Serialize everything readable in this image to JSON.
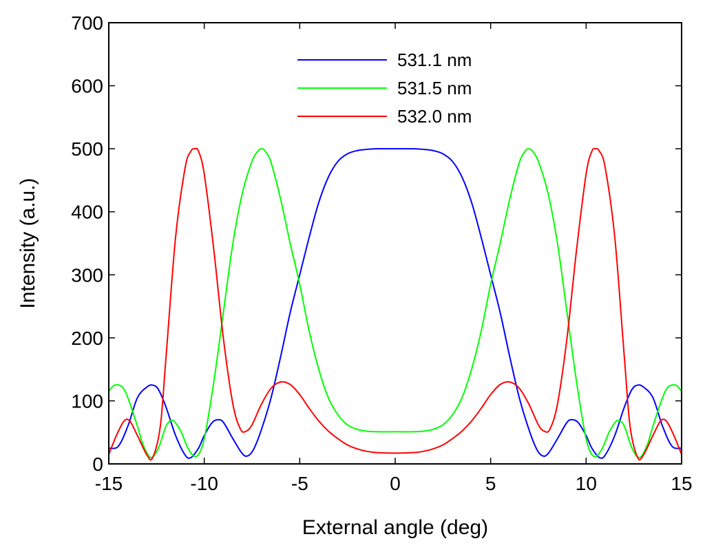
{
  "chart_data": {
    "type": "line",
    "title": "",
    "xlabel": "External angle (deg)",
    "ylabel": "Intensity (a.u.)",
    "xlim": [
      -15,
      15
    ],
    "ylim": [
      0,
      700
    ],
    "xticks": [
      -15,
      -10,
      -5,
      0,
      5,
      10,
      15
    ],
    "xtick_labels": [
      "-15",
      "-10",
      "-5",
      "0",
      "5",
      "10",
      "15"
    ],
    "yticks": [
      0,
      100,
      200,
      300,
      400,
      500,
      600,
      700
    ],
    "ytick_labels": [
      "0",
      "100",
      "200",
      "300",
      "400",
      "500",
      "600",
      "700"
    ],
    "grid": false,
    "legend_position": "top-center",
    "series": [
      {
        "name": "531.1 nm",
        "color": "#0000ff",
        "x": [
          -15,
          -14.5,
          -14,
          -13.5,
          -13,
          -12.7,
          -12.4,
          -12,
          -11.5,
          -11,
          -10.7,
          -10.3,
          -10,
          -9.6,
          -9.3,
          -9,
          -8.5,
          -8,
          -7.7,
          -7.4,
          -7,
          -6.5,
          -6,
          -5.5,
          -5,
          -4.5,
          -4,
          -3.5,
          -3,
          -2.5,
          -2,
          -1.5,
          -1,
          -0.5,
          0,
          0.5,
          1,
          1.5,
          2,
          2.5,
          3,
          3.5,
          4,
          4.5,
          5,
          5.5,
          6,
          6.5,
          7,
          7.4,
          7.7,
          8,
          8.5,
          9,
          9.3,
          9.6,
          10,
          10.3,
          10.7,
          11,
          11.5,
          12,
          12.4,
          12.7,
          13,
          13.5,
          14,
          14.5,
          15
        ],
        "y": [
          25,
          28,
          60,
          105,
          122,
          125,
          118,
          90,
          45,
          14,
          10,
          25,
          45,
          65,
          70,
          66,
          40,
          16,
          13,
          24,
          55,
          105,
          170,
          240,
          300,
          360,
          415,
          455,
          480,
          492,
          497,
          499,
          500,
          500,
          500,
          500,
          500,
          499,
          497,
          492,
          480,
          455,
          415,
          360,
          300,
          240,
          170,
          105,
          55,
          24,
          13,
          16,
          40,
          66,
          70,
          65,
          45,
          25,
          10,
          14,
          45,
          90,
          118,
          125,
          122,
          105,
          60,
          28,
          25
        ]
      },
      {
        "name": "531.5 nm",
        "color": "#00ff00",
        "x": [
          -15,
          -14.7,
          -14.3,
          -14,
          -13.5,
          -13.2,
          -12.8,
          -12.4,
          -12,
          -11.7,
          -11.5,
          -11.2,
          -10.8,
          -10.4,
          -10,
          -9.5,
          -9,
          -8.5,
          -8,
          -7.5,
          -7.2,
          -7,
          -6.8,
          -6.5,
          -6,
          -5.5,
          -5,
          -4.5,
          -4,
          -3.5,
          -3,
          -2.5,
          -2,
          -1.5,
          -1,
          0,
          1,
          1.5,
          2,
          2.5,
          3,
          3.5,
          4,
          4.5,
          5,
          5.5,
          6,
          6.5,
          6.8,
          7,
          7.2,
          7.5,
          8,
          8.5,
          9,
          9.5,
          10,
          10.4,
          10.8,
          11.2,
          11.5,
          11.7,
          12,
          12.4,
          12.8,
          13.2,
          13.5,
          14,
          14.3,
          14.7,
          15
        ],
        "y": [
          115,
          125,
          122,
          105,
          60,
          30,
          10,
          25,
          60,
          69,
          65,
          50,
          22,
          12,
          40,
          130,
          240,
          350,
          430,
          480,
          496,
          500,
          496,
          478,
          420,
          350,
          285,
          210,
          150,
          105,
          78,
          62,
          55,
          52,
          51,
          51,
          51,
          52,
          55,
          62,
          78,
          105,
          150,
          210,
          285,
          350,
          420,
          478,
          496,
          500,
          496,
          480,
          430,
          350,
          240,
          130,
          40,
          12,
          22,
          50,
          65,
          69,
          60,
          25,
          10,
          30,
          60,
          105,
          122,
          125,
          115
        ]
      },
      {
        "name": "532.0 nm",
        "color": "#ff0000",
        "x": [
          -15,
          -14.6,
          -14.2,
          -13.9,
          -13.5,
          -13,
          -12.7,
          -12.3,
          -12,
          -11.5,
          -11,
          -10.7,
          -10.5,
          -10.3,
          -10,
          -9.5,
          -9,
          -8.5,
          -8.1,
          -7.8,
          -7.5,
          -7,
          -6.5,
          -6,
          -5.5,
          -5,
          -4.5,
          -4,
          -3.5,
          -3,
          -2.5,
          -2,
          -1.5,
          -1,
          0,
          1,
          1.5,
          2,
          2.5,
          3,
          3.5,
          4,
          4.5,
          5,
          5.5,
          6,
          6.5,
          7,
          7.5,
          7.8,
          8.1,
          8.5,
          9,
          9.5,
          10,
          10.3,
          10.5,
          10.7,
          11,
          11.5,
          12,
          12.3,
          12.7,
          13,
          13.5,
          13.9,
          14.2,
          14.6,
          15
        ],
        "y": [
          15,
          45,
          68,
          68,
          45,
          14,
          10,
          60,
          170,
          360,
          470,
          496,
          500,
          496,
          460,
          340,
          200,
          95,
          55,
          52,
          62,
          95,
          120,
          130,
          126,
          110,
          88,
          68,
          52,
          40,
          30,
          24,
          20,
          18,
          17,
          18,
          20,
          24,
          30,
          40,
          52,
          68,
          88,
          110,
          126,
          130,
          120,
          95,
          62,
          52,
          55,
          95,
          200,
          340,
          460,
          496,
          500,
          496,
          470,
          360,
          170,
          60,
          10,
          14,
          45,
          68,
          68,
          45,
          15
        ]
      }
    ]
  }
}
